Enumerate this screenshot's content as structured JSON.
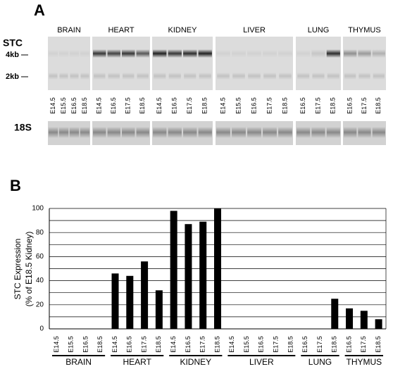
{
  "blot": {
    "panel_label": "A",
    "probes": [
      "STC",
      "18S"
    ],
    "size_markers": [
      "4kb",
      "2kb"
    ],
    "tissues": [
      {
        "name": "BRAIN",
        "lanes": [
          "E14.5",
          "E15.5",
          "E16.5",
          "E18.5"
        ]
      },
      {
        "name": "HEART",
        "lanes": [
          "E14.5",
          "E16.5",
          "E17.5",
          "E18.5"
        ]
      },
      {
        "name": "KIDNEY",
        "lanes": [
          "E14.5",
          "E16.5",
          "E17.5",
          "E18.5"
        ]
      },
      {
        "name": "LIVER",
        "lanes": [
          "E14.5",
          "E15.5",
          "E16.5",
          "E17.5",
          "E18.5"
        ]
      },
      {
        "name": "LUNG",
        "lanes": [
          "E16.5",
          "E17.5",
          "E18.5"
        ]
      },
      {
        "name": "THYMUS",
        "lanes": [
          "E16.5",
          "E17.5",
          "E18.5"
        ]
      }
    ]
  },
  "chart_data": {
    "type": "bar",
    "panel_label": "B",
    "y_label": [
      "STC Expression",
      "(% of E18.5 Kidney)"
    ],
    "color": "#000000",
    "ylim": [
      0,
      100
    ],
    "yticks": [
      0,
      20,
      40,
      60,
      80,
      100
    ],
    "minor_yticks": [
      10,
      30,
      50,
      70,
      90
    ],
    "grid": true,
    "groups": [
      {
        "name": "BRAIN",
        "categories": [
          "E14.5",
          "E15.5",
          "E16.5",
          "E18.5"
        ],
        "values": [
          0,
          0,
          0,
          0
        ]
      },
      {
        "name": "HEART",
        "categories": [
          "E14.5",
          "E16.5",
          "E17.5",
          "E18.5"
        ],
        "values": [
          46,
          44,
          56,
          32
        ]
      },
      {
        "name": "KIDNEY",
        "categories": [
          "E14.5",
          "E16.5",
          "E17.5",
          "E18.5"
        ],
        "values": [
          98,
          87,
          89,
          100
        ]
      },
      {
        "name": "LIVER",
        "categories": [
          "E14.5",
          "E15.5",
          "E16.5",
          "E17.5",
          "E18.5"
        ],
        "values": [
          0,
          0,
          0,
          0,
          0
        ]
      },
      {
        "name": "LUNG",
        "categories": [
          "E16.5",
          "E17.5",
          "E18.5"
        ],
        "values": [
          0,
          0,
          25
        ]
      },
      {
        "name": "THYMUS",
        "categories": [
          "E16.5",
          "E17.5",
          "E18.5"
        ],
        "values": [
          17,
          15,
          8
        ]
      }
    ]
  }
}
